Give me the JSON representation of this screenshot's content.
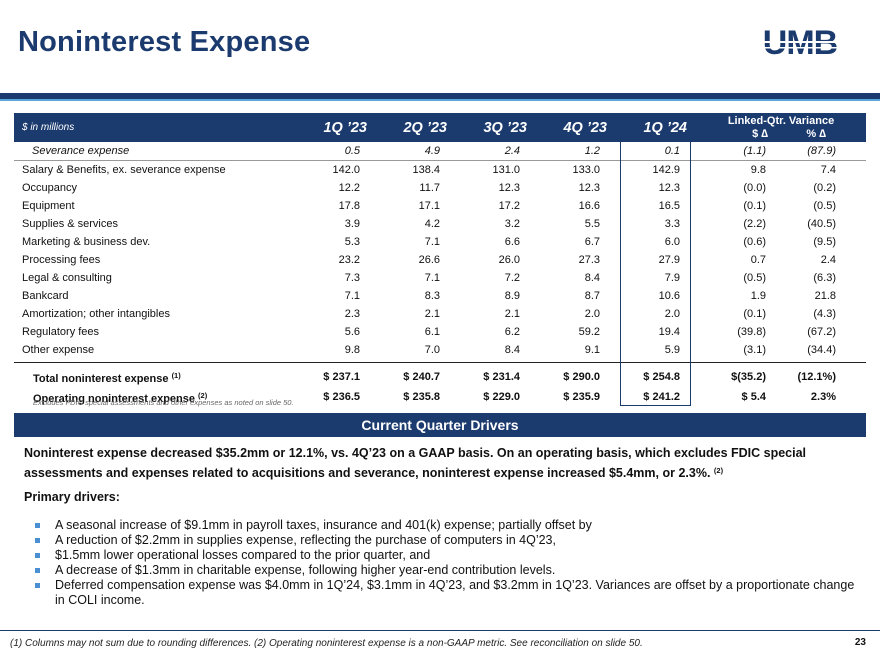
{
  "title": "Noninterest Expense",
  "logo_text": "UMB",
  "table": {
    "units": "$ in millions",
    "periods": [
      "1Q ’23",
      "2Q ’23",
      "3Q ’23",
      "4Q ’23",
      "1Q ’24"
    ],
    "variance_title": "Linked-Qtr. Variance",
    "variance_cols": [
      "$ ∆",
      "% ∆"
    ],
    "severance": {
      "label": "Severance expense",
      "values": [
        "0.5",
        "4.9",
        "2.4",
        "1.2",
        "0.1",
        "(1.1)",
        "(87.9)"
      ]
    },
    "rows": [
      {
        "label": "Salary & Benefits, ex. severance expense",
        "values": [
          "142.0",
          "138.4",
          "131.0",
          "133.0",
          "142.9",
          "9.8",
          "7.4"
        ]
      },
      {
        "label": "Occupancy",
        "values": [
          "12.2",
          "11.7",
          "12.3",
          "12.3",
          "12.3",
          "(0.0)",
          "(0.2)"
        ]
      },
      {
        "label": "Equipment",
        "values": [
          "17.8",
          "17.1",
          "17.2",
          "16.6",
          "16.5",
          "(0.1)",
          "(0.5)"
        ]
      },
      {
        "label": "Supplies & services",
        "values": [
          "3.9",
          "4.2",
          "3.2",
          "5.5",
          "3.3",
          "(2.2)",
          "(40.5)"
        ]
      },
      {
        "label": "Marketing & business dev.",
        "values": [
          "5.3",
          "7.1",
          "6.6",
          "6.7",
          "6.0",
          "(0.6)",
          "(9.5)"
        ]
      },
      {
        "label": "Processing fees",
        "values": [
          "23.2",
          "26.6",
          "26.0",
          "27.3",
          "27.9",
          "0.7",
          "2.4"
        ]
      },
      {
        "label": "Legal & consulting",
        "values": [
          "7.3",
          "7.1",
          "7.2",
          "8.4",
          "7.9",
          "(0.5)",
          "(6.3)"
        ]
      },
      {
        "label": "Bankcard",
        "values": [
          "7.1",
          "8.3",
          "8.9",
          "8.7",
          "10.6",
          "1.9",
          "21.8"
        ]
      },
      {
        "label": "Amortization; other intangibles",
        "values": [
          "2.3",
          "2.1",
          "2.1",
          "2.0",
          "2.0",
          "(0.1)",
          "(4.3)"
        ]
      },
      {
        "label": "Regulatory fees",
        "values": [
          "5.6",
          "6.1",
          "6.2",
          "59.2",
          "19.4",
          "(39.8)",
          "(67.2)"
        ]
      },
      {
        "label": "Other expense",
        "values": [
          "9.8",
          "7.0",
          "8.4",
          "9.1",
          "5.9",
          "(3.1)",
          "(34.4)"
        ]
      }
    ],
    "totals": [
      {
        "label": "Total noninterest expense",
        "sup": "(1)",
        "values": [
          "$ 237.1",
          "$ 240.7",
          "$ 231.4",
          "$ 290.0",
          "$ 254.8",
          "$(35.2)",
          "(12.1%)"
        ]
      },
      {
        "label": "Operating noninterest expense",
        "sup": "(2)",
        "values": [
          "$ 236.5",
          "$ 235.8",
          "$ 229.0",
          "$ 235.9",
          "$ 241.2",
          "$ 5.4",
          "2.3%"
        ]
      }
    ],
    "note": "Excludes FDIC special assessments and other expenses as noted on slide 50."
  },
  "drivers": {
    "heading": "Current Quarter Drivers",
    "summary": "Noninterest expense decreased $35.2mm or 12.1%, vs. 4Q’23 on a GAAP basis. On an operating basis, which excludes FDIC special assessments and expenses related to acquisitions and severance, noninterest expense increased $5.4mm, or 2.3%.",
    "summary_sup": "(2)",
    "primary_label": "Primary drivers:",
    "bullets": [
      "A seasonal increase of $9.1mm in payroll taxes, insurance and 401(k) expense; partially offset by",
      "A reduction of $2.2mm in supplies expense, reflecting the purchase of computers in 4Q’23,",
      "$1.5mm lower operational losses compared to the prior quarter, and",
      "A decrease of $1.3mm in charitable expense, following higher year-end contribution levels.",
      "Deferred compensation expense was $4.0mm in 1Q’24, $3.1mm in 4Q’23, and $3.2mm in 1Q’23. Variances are offset by a proportionate change in COLI income."
    ]
  },
  "footer": "(1) Columns may not sum due to rounding differences. (2) Operating noninterest expense is a non-GAAP metric. See reconciliation on slide 50.",
  "page_number": "23",
  "colors": {
    "navy": "#1b3a6e",
    "accent": "#5aa7da",
    "bullet": "#4a8fd1"
  }
}
